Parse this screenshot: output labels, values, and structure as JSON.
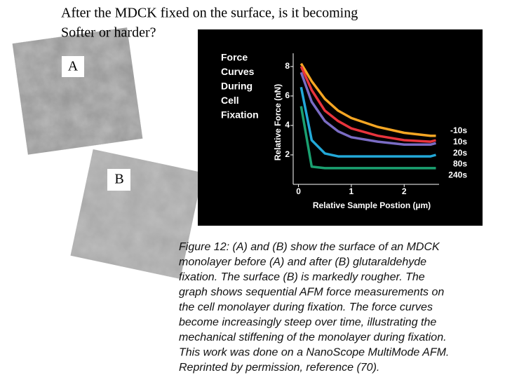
{
  "slide": {
    "title": [
      "After the MDCK fixed on the surface, is it becoming",
      "Softer or harder?"
    ],
    "image_labels": [
      "A",
      "B"
    ],
    "caption": [
      "Figure 12:  (A) and (B) show the surface of an MDCK",
      "monolayer before (A) and after (B) glutaraldehyde",
      "fixation.  The surface (B) is markedly rougher.  The",
      "graph shows sequential AFM force measurements on",
      "the cell monolayer during fixation.  The force curves",
      "become increasingly steep over time, illustrating the",
      "mechanical stiffening of the monolayer during fixation.",
      "This work was done on a NanoScope MultiMode AFM.",
      "Reprinted by permission, reference (70)."
    ]
  },
  "chart_data": {
    "type": "line",
    "title": [
      "Force",
      "Curves",
      "During",
      "Cell",
      "Fixation"
    ],
    "x_label": "Relative Sample Postion (µm)",
    "y_label": "Relative Force (nN)",
    "x": [
      0.05,
      0.25,
      0.5,
      0.75,
      1,
      1.5,
      2,
      2.5,
      2.6
    ],
    "series": [
      {
        "name": "-10s",
        "color": "#f5a623",
        "values": [
          8.2,
          7.0,
          5.8,
          5.0,
          4.5,
          3.9,
          3.5,
          3.3,
          3.3
        ]
      },
      {
        "name": "10s",
        "color": "#e8343c",
        "values": [
          8.0,
          6.4,
          5.0,
          4.3,
          3.8,
          3.3,
          3.0,
          2.9,
          3.0
        ]
      },
      {
        "name": "20s",
        "color": "#7a6cc4",
        "values": [
          7.6,
          5.6,
          4.3,
          3.6,
          3.2,
          2.9,
          2.7,
          2.7,
          2.8
        ]
      },
      {
        "name": "80s",
        "color": "#22a8d8",
        "values": [
          6.6,
          3.0,
          2.1,
          1.9,
          1.9,
          1.9,
          1.9,
          1.9,
          2.0
        ]
      },
      {
        "name": "240s",
        "color": "#1aa070",
        "values": [
          5.3,
          1.2,
          1.1,
          1.1,
          1.1,
          1.1,
          1.1,
          1.1,
          1.1
        ]
      }
    ],
    "xlim": [
      -0.1,
      2.66
    ],
    "ylim": [
      0,
      8.9
    ],
    "xticks": [
      0,
      1,
      2
    ],
    "yticks": [
      2,
      4,
      6,
      8
    ]
  }
}
